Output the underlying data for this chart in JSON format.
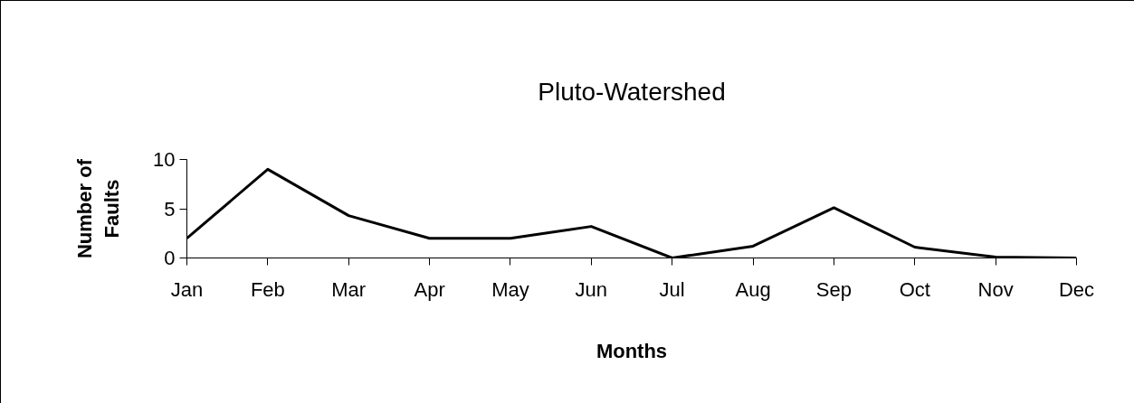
{
  "chart_data": {
    "type": "line",
    "title": "Pluto-Watershed",
    "xlabel": "Months",
    "ylabel": "Number of Faults",
    "categories": [
      "Jan",
      "Feb",
      "Mar",
      "Apr",
      "May",
      "Jun",
      "Jul",
      "Aug",
      "Sep",
      "Oct",
      "Nov",
      "Dec"
    ],
    "series": [
      {
        "color": "#000000",
        "values": [
          2,
          9,
          4.3,
          2,
          2,
          3.2,
          0,
          1.2,
          5.1,
          1.1,
          0.1,
          0
        ]
      }
    ],
    "ylim": [
      0,
      10
    ],
    "yticks": [
      0,
      5,
      10
    ],
    "grid": false,
    "marker": "none",
    "line_style": "solid"
  }
}
